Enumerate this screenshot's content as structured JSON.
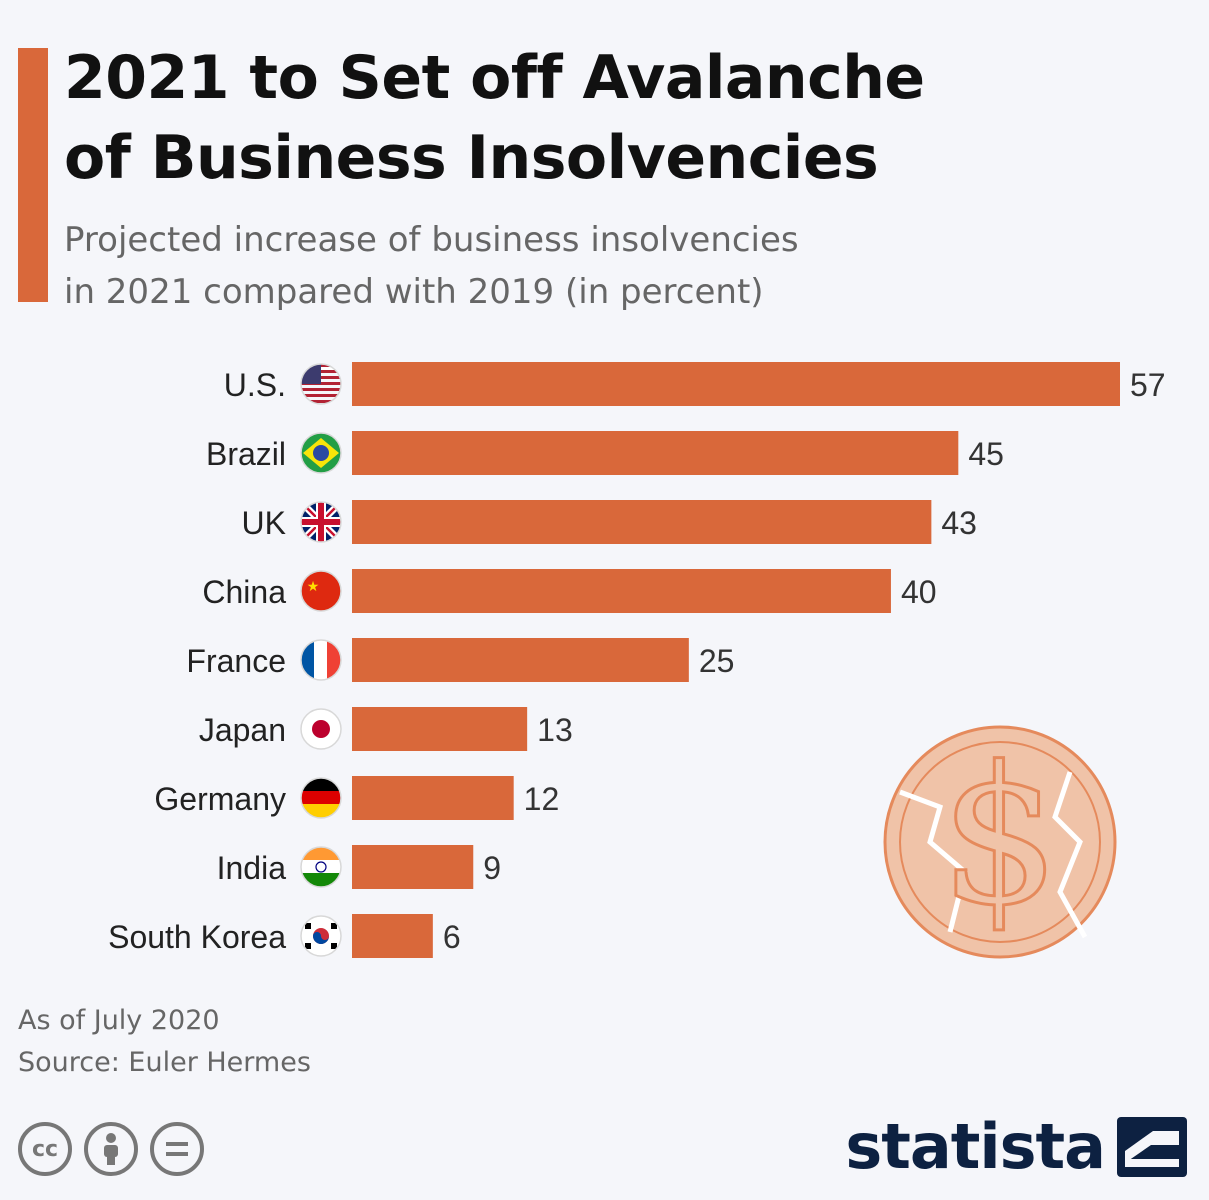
{
  "colors": {
    "accent": "#d9683a",
    "bar": "#d9683a",
    "text": "#111111",
    "muted": "#666666",
    "brand": "#0d2141"
  },
  "header": {
    "title": "2021 to Set off Avalanche\nof Business Insolvencies",
    "subtitle": "Projected increase of business insolvencies\nin 2021 compared with 2019 (in percent)"
  },
  "chart_data": {
    "type": "bar",
    "orientation": "horizontal",
    "categories": [
      "U.S.",
      "Brazil",
      "UK",
      "China",
      "France",
      "Japan",
      "Germany",
      "India",
      "South Korea"
    ],
    "values": [
      57,
      45,
      43,
      40,
      25,
      13,
      12,
      9,
      6
    ],
    "category_icons": [
      "flag-us-icon",
      "flag-brazil-icon",
      "flag-uk-icon",
      "flag-china-icon",
      "flag-france-icon",
      "flag-japan-icon",
      "flag-germany-icon",
      "flag-india-icon",
      "flag-south-korea-icon"
    ],
    "data_labels": true,
    "grid": false,
    "legend": "none",
    "xlim": [
      0,
      57
    ]
  },
  "footer": {
    "as_of": "As of July 2020",
    "source": "Source: Euler Hermes",
    "license_icons": [
      "cc-icon",
      "by-icon",
      "nd-icon"
    ],
    "brand": "statista"
  },
  "decor": {
    "illustration": "cracked-dollar-coin-icon"
  }
}
